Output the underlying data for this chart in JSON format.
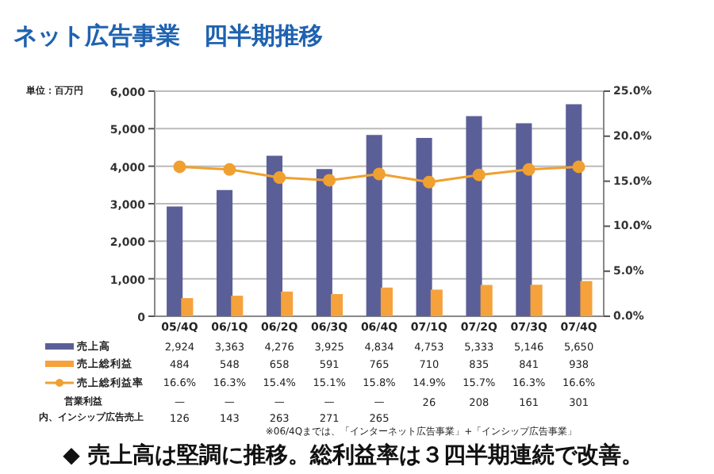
{
  "chart_data": {
    "type": "bar",
    "title": "ネット広告事業　四半期推移",
    "ylabel": "単位：百万円",
    "categories": [
      "05/4Q",
      "06/1Q",
      "06/2Q",
      "06/3Q",
      "06/4Q",
      "07/1Q",
      "07/2Q",
      "07/3Q",
      "07/4Q"
    ],
    "series": [
      {
        "name": "売上高",
        "color": "#5b5f98",
        "values": [
          2924,
          3363,
          4276,
          3925,
          4834,
          4753,
          5333,
          5146,
          5650
        ],
        "value_labels": [
          "2,924",
          "3,363",
          "4,276",
          "3,925",
          "4,834",
          "4,753",
          "5,333",
          "5,146",
          "5,650"
        ]
      },
      {
        "name": "売上総利益",
        "color": "#f5a23c",
        "values": [
          484,
          548,
          658,
          591,
          765,
          710,
          835,
          841,
          938
        ],
        "value_labels": [
          "484",
          "548",
          "658",
          "591",
          "765",
          "710",
          "835",
          "841",
          "938"
        ]
      },
      {
        "name": "売上総利益率",
        "type": "line",
        "axis": "y2",
        "color": "#f0a030",
        "marker": "circle",
        "values": [
          16.6,
          16.3,
          15.4,
          15.1,
          15.8,
          14.9,
          15.7,
          16.3,
          16.6
        ],
        "value_labels": [
          "16.6%",
          "16.3%",
          "15.4%",
          "15.1%",
          "15.8%",
          "14.9%",
          "15.7%",
          "16.3%",
          "16.6%"
        ]
      }
    ],
    "ylim": [
      0,
      6000
    ],
    "yticks": [
      {
        "value": 0,
        "label": "0"
      },
      {
        "value": 1000,
        "label": "1,000"
      },
      {
        "value": 2000,
        "label": "2,000"
      },
      {
        "value": 3000,
        "label": "3,000"
      },
      {
        "value": 4000,
        "label": "4,000"
      },
      {
        "value": 5000,
        "label": "5,000"
      },
      {
        "value": 6000,
        "label": "6,000"
      }
    ],
    "y2lim": [
      0,
      25
    ],
    "y2ticks": [
      {
        "value": 0,
        "label": "0.0%"
      },
      {
        "value": 5,
        "label": "5.0%"
      },
      {
        "value": 10,
        "label": "10.0%"
      },
      {
        "value": 15,
        "label": "15.0%"
      },
      {
        "value": 20,
        "label": "20.0%"
      },
      {
        "value": 25,
        "label": "25.0%"
      }
    ],
    "grid": "y",
    "legend": "bottom",
    "annotations": [
      "営業利益 — — — — — 26 208 161 301",
      "内、インシップ広告売上 126 143 263 271 265",
      "※06/4Qまでは、「インターネット広告事業」+「インシップ広告事業」",
      "◆ 売上高は堅調に推移。総利益率は３四半期連続で改善。"
    ]
  }
}
